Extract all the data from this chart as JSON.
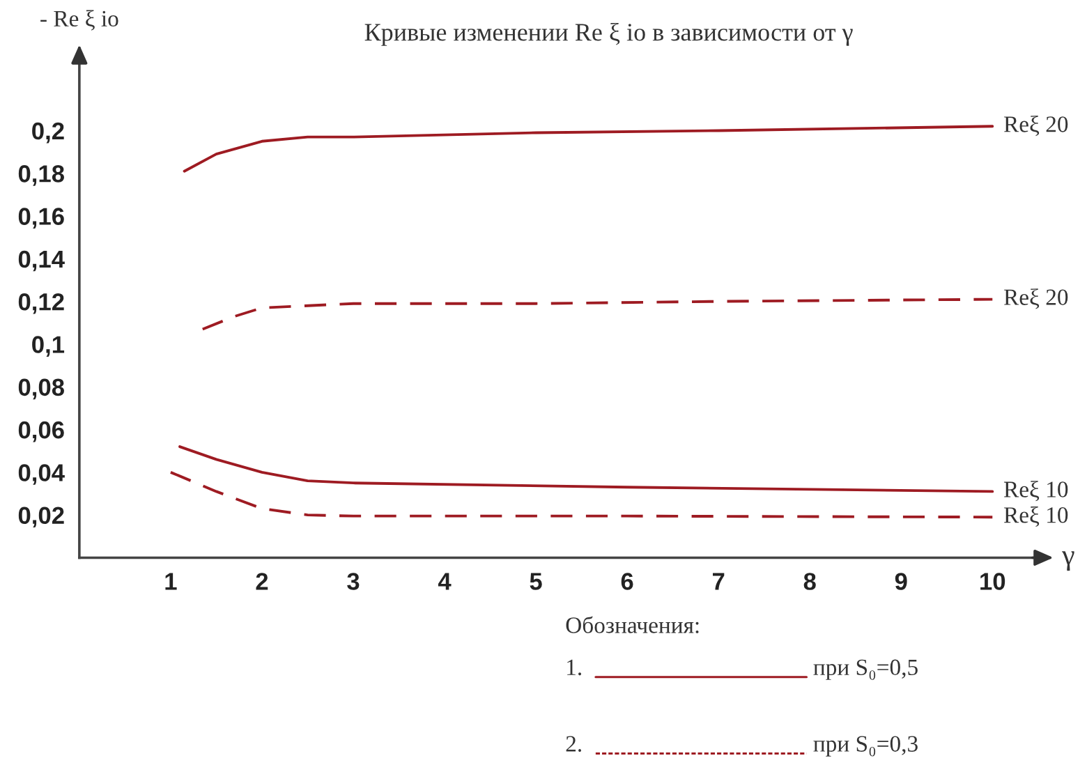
{
  "chart_data": {
    "type": "line",
    "title": "Кривые изменении Re ξ io в зависимости от γ",
    "xlabel": "γ",
    "ylabel": "- Re ξ io",
    "legend_title": "Обозначения:",
    "annotations": [
      "1.",
      "при S₀=0,5",
      "2.",
      "при S₀=0,3"
    ],
    "xlim": [
      0,
      10.5
    ],
    "ylim": [
      0,
      0.235
    ],
    "xticks": [
      1,
      2,
      3,
      4,
      5,
      6,
      7,
      8,
      9,
      10
    ],
    "yticks": [
      {
        "value": 0.02,
        "label": "0,02"
      },
      {
        "value": 0.04,
        "label": "0,04"
      },
      {
        "value": 0.06,
        "label": "0,06"
      },
      {
        "value": 0.08,
        "label": "0,08"
      },
      {
        "value": 0.1,
        "label": "0,1"
      },
      {
        "value": 0.12,
        "label": "0,12"
      },
      {
        "value": 0.14,
        "label": "0,14"
      },
      {
        "value": 0.16,
        "label": "0,16"
      },
      {
        "value": 0.18,
        "label": "0,18"
      },
      {
        "value": 0.2,
        "label": "0,2"
      }
    ],
    "grid": false,
    "legend": "bottom",
    "series": [
      {
        "name": "Reξ 20",
        "color": "#9e1b22",
        "line_style": "solid",
        "x": [
          1.15,
          1.5,
          2,
          2.5,
          3,
          5,
          7,
          10
        ],
        "values": [
          0.181,
          0.189,
          0.195,
          0.197,
          0.197,
          0.199,
          0.2,
          0.202
        ]
      },
      {
        "name": "Reξ 20",
        "color": "#9e1b22",
        "line_style": "dashed",
        "x": [
          1.35,
          1.7,
          2,
          3,
          5,
          7,
          10
        ],
        "values": [
          0.107,
          0.113,
          0.117,
          0.119,
          0.119,
          0.12,
          0.121
        ]
      },
      {
        "name": "Reξ 10",
        "color": "#9e1b22",
        "line_style": "solid",
        "x": [
          1.1,
          1.5,
          2,
          2.5,
          3,
          6,
          10
        ],
        "values": [
          0.052,
          0.046,
          0.04,
          0.036,
          0.035,
          0.033,
          0.031
        ]
      },
      {
        "name": "Reξ 10",
        "color": "#9e1b22",
        "line_style": "dashed",
        "x": [
          1,
          1.5,
          2,
          2.5,
          3,
          6,
          10
        ],
        "values": [
          0.04,
          0.031,
          0.023,
          0.02,
          0.0195,
          0.0195,
          0.019
        ]
      }
    ]
  }
}
